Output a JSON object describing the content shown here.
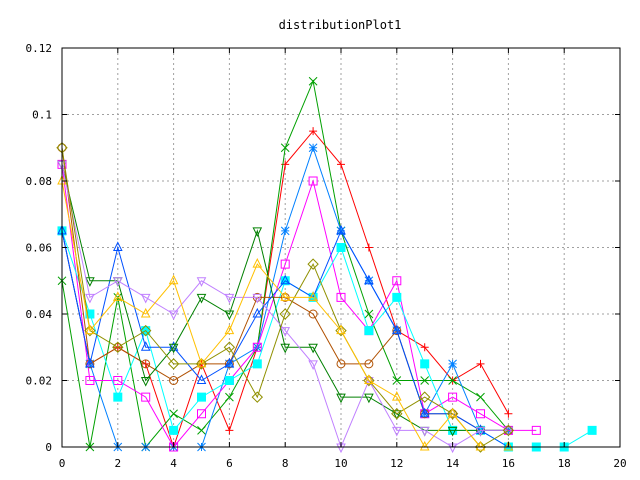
{
  "chart_data": {
    "type": "line",
    "title": "distributionPlot1",
    "xlabel": "",
    "ylabel": "",
    "xlim": [
      0,
      20
    ],
    "ylim": [
      0,
      0.12
    ],
    "x_ticks": [
      "0",
      "2",
      "4",
      "6",
      "8",
      "10",
      "12",
      "14",
      "16",
      "18",
      "20"
    ],
    "y_ticks": [
      "0",
      "0.02",
      "0.04",
      "0.06",
      "0.08",
      "0.1",
      "0.12"
    ],
    "grid": true,
    "legend": "none",
    "series": [
      {
        "color": "#ff0000",
        "marker": "plus",
        "x": [
          0,
          1,
          2,
          3,
          4,
          5,
          6,
          7,
          8,
          9,
          10,
          11,
          12,
          13,
          14,
          15,
          16
        ],
        "y": [
          0.065,
          0.025,
          0.03,
          0.025,
          0.0,
          0.025,
          0.005,
          0.03,
          0.085,
          0.095,
          0.085,
          0.06,
          0.035,
          0.03,
          0.02,
          0.025,
          0.01
        ]
      },
      {
        "color": "#00a000",
        "marker": "x",
        "x": [
          0,
          1,
          2,
          3,
          4,
          5,
          6,
          7,
          8,
          9,
          10,
          11,
          12,
          13,
          14,
          15,
          16
        ],
        "y": [
          0.05,
          0.0,
          0.045,
          0.0,
          0.01,
          0.005,
          0.015,
          0.03,
          0.09,
          0.11,
          0.065,
          0.04,
          0.02,
          0.02,
          0.02,
          0.015,
          0.005
        ]
      },
      {
        "color": "#0080ff",
        "marker": "asterisk",
        "x": [
          0,
          1,
          2,
          3,
          4,
          5,
          6,
          7,
          8,
          9,
          10,
          11,
          12,
          13,
          14,
          15,
          16
        ],
        "y": [
          0.065,
          0.025,
          0.0,
          0.0,
          0.0,
          0.0,
          0.025,
          0.03,
          0.065,
          0.09,
          0.065,
          0.05,
          0.035,
          0.01,
          0.025,
          0.005,
          0.005
        ]
      },
      {
        "color": "#ff00ff",
        "marker": "square",
        "x": [
          0,
          1,
          2,
          3,
          4,
          5,
          6,
          7,
          8,
          9,
          10,
          11,
          12,
          13,
          14,
          15,
          16,
          17
        ],
        "y": [
          0.085,
          0.02,
          0.02,
          0.015,
          0.0,
          0.01,
          0.02,
          0.03,
          0.055,
          0.08,
          0.045,
          0.035,
          0.05,
          0.01,
          0.015,
          0.01,
          0.005,
          0.005
        ]
      },
      {
        "color": "#00ffff",
        "marker": "filled-square",
        "x": [
          0,
          1,
          2,
          3,
          4,
          5,
          6,
          7,
          8,
          9,
          10,
          11,
          12,
          13,
          14,
          15,
          16,
          17,
          18,
          19
        ],
        "y": [
          0.065,
          0.04,
          0.015,
          0.035,
          0.005,
          0.015,
          0.02,
          0.025,
          0.05,
          0.045,
          0.06,
          0.035,
          0.045,
          0.025,
          0.005,
          0.005,
          0.0,
          0.0,
          0.0,
          0.005
        ]
      },
      {
        "color": "#b05000",
        "marker": "circle",
        "x": [
          0,
          1,
          2,
          3,
          4,
          5,
          6,
          7,
          8,
          9,
          10,
          11,
          12,
          13,
          14,
          15,
          16
        ],
        "y": [
          0.09,
          0.025,
          0.03,
          0.025,
          0.02,
          0.025,
          0.025,
          0.045,
          0.045,
          0.04,
          0.025,
          0.025,
          0.035,
          0.01,
          0.01,
          0.005,
          0.005
        ]
      },
      {
        "color": "#0050ff",
        "marker": "triangle-up",
        "x": [
          0,
          1,
          2,
          3,
          4,
          5,
          6,
          7,
          8,
          9,
          10,
          11,
          12,
          13,
          14,
          15,
          16
        ],
        "y": [
          0.065,
          0.025,
          0.06,
          0.03,
          0.03,
          0.02,
          0.025,
          0.04,
          0.05,
          0.045,
          0.065,
          0.05,
          0.035,
          0.01,
          0.01,
          0.005,
          0.0
        ]
      },
      {
        "color": "#008000",
        "marker": "triangle-down",
        "x": [
          0,
          1,
          2,
          3,
          4,
          5,
          6,
          7,
          8,
          9,
          10,
          11,
          12,
          13,
          14,
          15,
          16
        ],
        "y": [
          0.085,
          0.05,
          0.05,
          0.02,
          0.03,
          0.045,
          0.04,
          0.065,
          0.03,
          0.03,
          0.015,
          0.015,
          0.01,
          0.005,
          0.005,
          0.005,
          0.005
        ]
      },
      {
        "color": "#c080ff",
        "marker": "triangle-down",
        "x": [
          0,
          1,
          2,
          3,
          4,
          5,
          6,
          7,
          8,
          9,
          10,
          11,
          12,
          13,
          14,
          15,
          16
        ],
        "y": [
          0.085,
          0.045,
          0.05,
          0.045,
          0.04,
          0.05,
          0.045,
          0.045,
          0.035,
          0.025,
          0.0,
          0.02,
          0.005,
          0.005,
          0.0,
          0.005,
          0.005
        ]
      },
      {
        "color": "#909000",
        "marker": "diamond",
        "x": [
          0,
          1,
          2,
          3,
          4,
          5,
          6,
          7,
          8,
          9,
          10,
          11,
          12,
          13,
          14,
          15,
          16
        ],
        "y": [
          0.09,
          0.035,
          0.03,
          0.035,
          0.025,
          0.025,
          0.03,
          0.015,
          0.04,
          0.055,
          0.035,
          0.02,
          0.01,
          0.015,
          0.01,
          0.0,
          0.005
        ]
      },
      {
        "color": "#ffc000",
        "marker": "triangle-up",
        "x": [
          0,
          1,
          2,
          3,
          4,
          5,
          6,
          7,
          8,
          9,
          10,
          11,
          12,
          13,
          14,
          15,
          16
        ],
        "y": [
          0.08,
          0.035,
          0.045,
          0.04,
          0.05,
          0.025,
          0.035,
          0.055,
          0.045,
          0.045,
          0.035,
          0.02,
          0.015,
          0.0,
          0.01,
          0.0,
          0.0
        ]
      }
    ]
  }
}
